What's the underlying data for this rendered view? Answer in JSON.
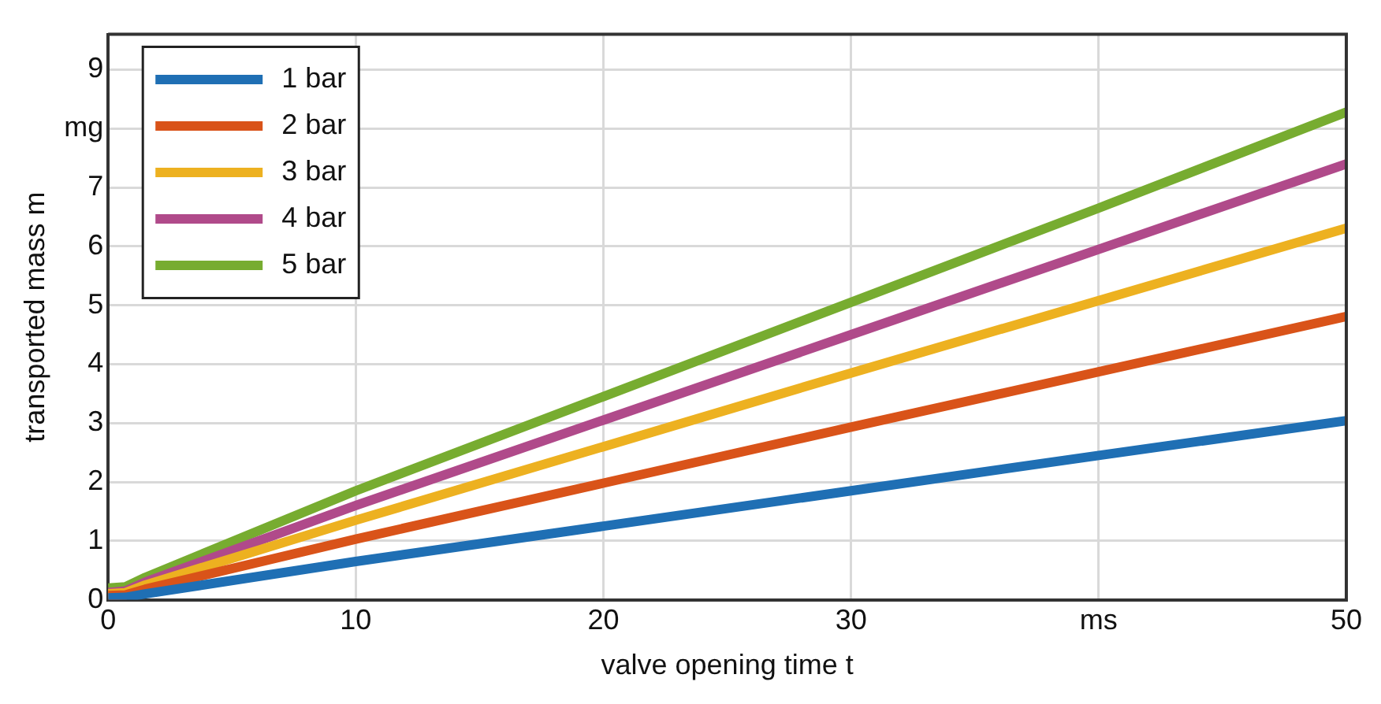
{
  "chart_data": {
    "type": "line",
    "xlabel": "valve opening time t",
    "ylabel": "transported mass m",
    "xlim": [
      0,
      50
    ],
    "xticks": [
      0,
      10,
      20,
      30,
      {
        "value": 40,
        "label": "ms"
      },
      50
    ],
    "ylim": [
      0,
      9.6
    ],
    "yticks": [
      0,
      1,
      2,
      3,
      4,
      5,
      6,
      7,
      {
        "value": 8,
        "label": "mg"
      },
      9
    ],
    "grid": true,
    "legend": "top left",
    "marker": "none",
    "line_style": "solid",
    "series": [
      {
        "name": "1 bar",
        "color": "#1f6fb4",
        "x": [
          0,
          0.7,
          1.5,
          10,
          20,
          30,
          40,
          50
        ],
        "values": [
          0.03,
          0.04,
          0.1,
          0.65,
          1.25,
          1.85,
          2.45,
          3.04
        ]
      },
      {
        "name": "2 bar",
        "color": "#d95319",
        "x": [
          0,
          0.7,
          1.5,
          10,
          20,
          30,
          40,
          50
        ],
        "values": [
          0.07,
          0.08,
          0.18,
          1.03,
          1.98,
          2.93,
          3.87,
          4.81
        ]
      },
      {
        "name": "3 bar",
        "color": "#edb120",
        "x": [
          0,
          0.7,
          1.5,
          10,
          20,
          30,
          40,
          50
        ],
        "values": [
          0.1,
          0.12,
          0.25,
          1.35,
          2.6,
          3.85,
          5.08,
          6.31
        ]
      },
      {
        "name": "4 bar",
        "color": "#b04a8a",
        "x": [
          0,
          0.7,
          1.5,
          10,
          20,
          30,
          40,
          50
        ],
        "values": [
          0.12,
          0.15,
          0.3,
          1.6,
          3.05,
          4.5,
          5.95,
          7.4
        ]
      },
      {
        "name": "5 bar",
        "color": "#77ac30",
        "x": [
          0,
          0.7,
          1.5,
          10,
          20,
          30,
          40,
          50
        ],
        "values": [
          0.2,
          0.22,
          0.38,
          1.85,
          3.45,
          5.05,
          6.65,
          8.28
        ]
      }
    ]
  }
}
